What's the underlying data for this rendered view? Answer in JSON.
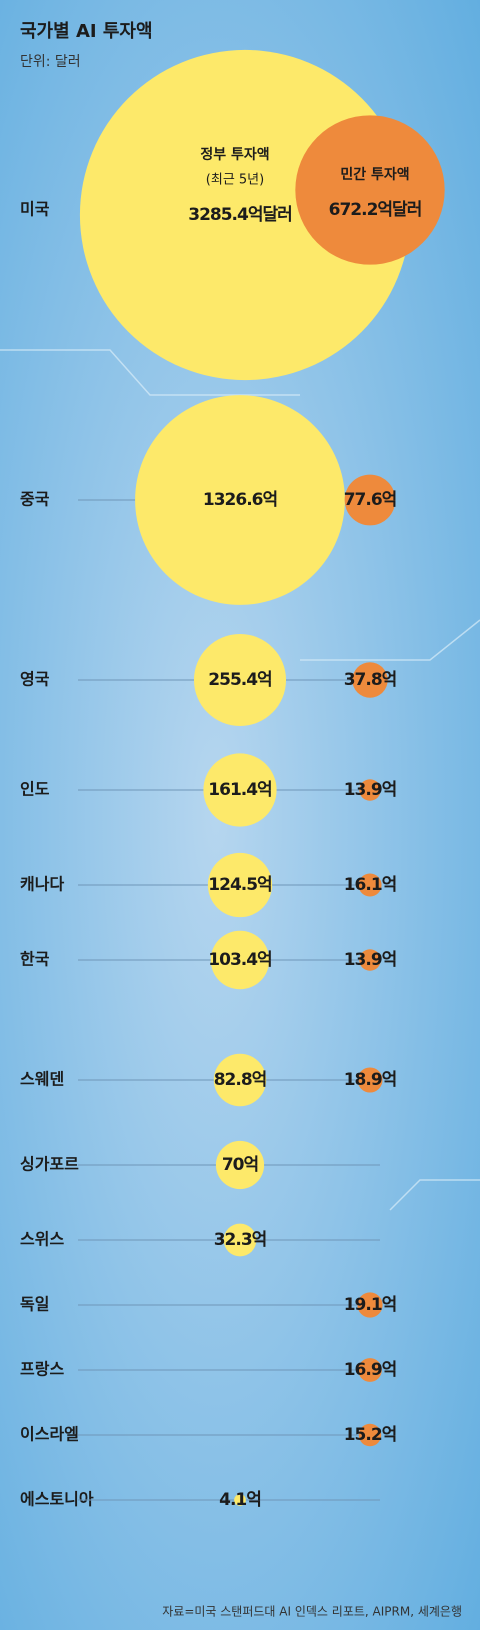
{
  "chart_data": {
    "type": "bubble",
    "title": "국가별 AI 투자액",
    "subtitle": "단위: 달러",
    "annotation": "(최근 5년)",
    "source": "자료=미국 스탠퍼드대 AI 인덱스 리포트, AIPRM, 세계은행",
    "categories": [
      "미국",
      "중국",
      "영국",
      "인도",
      "캐나다",
      "한국",
      "스웨덴",
      "싱가포르",
      "스위스",
      "독일",
      "프랑스",
      "이스라엘",
      "에스토니아"
    ],
    "series": [
      {
        "name": "정부 투자액",
        "color": "#fde96a",
        "values": [
          3285.4,
          1326.6,
          255.4,
          161.4,
          124.5,
          103.4,
          82.8,
          70,
          32.3,
          null,
          null,
          null,
          4.1
        ],
        "value_labels": [
          "3285.4억달러",
          "1326.6억",
          "255.4억",
          "161.4억",
          "124.5억",
          "103.4억",
          "82.8억",
          "70억",
          "32.3억",
          null,
          null,
          null,
          "4.1억"
        ]
      },
      {
        "name": "민간 투자액",
        "color": "#ee8a3c",
        "values": [
          672.2,
          77.6,
          37.8,
          13.9,
          16.1,
          13.9,
          18.9,
          null,
          null,
          19.1,
          16.9,
          15.2,
          null
        ],
        "value_labels": [
          "672.2억달러",
          "77.6억",
          "37.8억",
          "13.9억",
          "16.1억",
          "13.9억",
          "18.9억",
          null,
          null,
          "19.1억",
          "16.9억",
          "15.2억",
          null
        ]
      }
    ]
  }
}
